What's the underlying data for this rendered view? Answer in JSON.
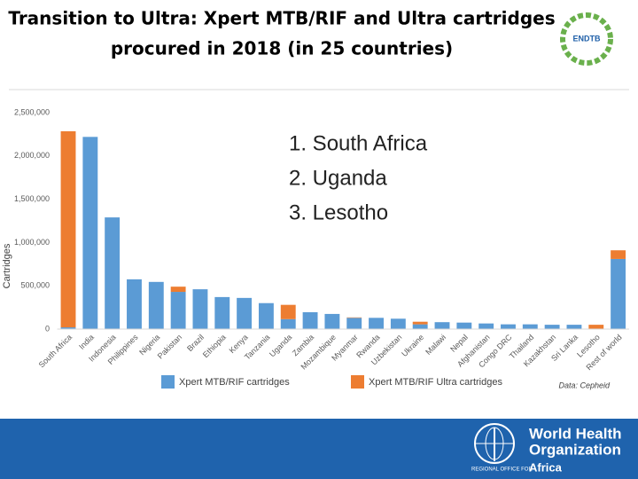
{
  "header": {
    "title_lines": [
      "Transition to Ultra: Xpert MTB/RIF and Ultra cartridges",
      "procured in 2018 (in 25 countries)"
    ],
    "logo_text": "ENDTB"
  },
  "chart_data": {
    "type": "stacked_bar",
    "y_label": "Cartridges",
    "categories": [
      "South Africa",
      "India",
      "Indonesia",
      "Philippines",
      "Nigeria",
      "Pakistan",
      "Brazil",
      "Ethiopia",
      "Kenya",
      "Tanzania",
      "Uganda",
      "Zambia",
      "Mozambique",
      "Myanmar",
      "Rwanda",
      "Uzbekistan",
      "Ukraine",
      "Malawi",
      "Nepal",
      "Afghanistan",
      "Congo DRC",
      "Thailand",
      "Kazakhstan",
      "Sri Lanka",
      "Lesotho",
      "Rest of world"
    ],
    "series": [
      {
        "name": "Xpert MTB/RIF cartridges",
        "color": "#5b9bd5",
        "values": [
          20000,
          2220000,
          1290000,
          575000,
          545000,
          430000,
          460000,
          370000,
          360000,
          300000,
          115000,
          195000,
          175000,
          130000,
          130000,
          120000,
          55000,
          80000,
          75000,
          65000,
          55000,
          55000,
          50000,
          50000,
          0,
          810000
        ]
      },
      {
        "name": "Xpert MTB/RIF Ultra cartridges",
        "color": "#ed7d31",
        "values": [
          2265000,
          0,
          0,
          0,
          0,
          60000,
          0,
          0,
          0,
          0,
          165000,
          0,
          0,
          5000,
          0,
          0,
          30000,
          0,
          0,
          0,
          0,
          0,
          0,
          0,
          50000,
          100000
        ]
      }
    ],
    "ylim": [
      0,
      2500000
    ],
    "yticks": [
      0,
      {
        "value": 500000,
        "label": "500,000"
      },
      {
        "value": 1000000,
        "label": "1,000,000"
      },
      {
        "value": 1500000,
        "label": "1,500,000"
      },
      {
        "value": 2000000,
        "label": "2,000,000"
      },
      {
        "value": 2500000,
        "label": "2,500,000"
      }
    ],
    "grid": false,
    "legend": "bottom",
    "annotations": [
      "1. South Africa",
      "2. Uganda",
      "3. Lesotho"
    ],
    "source": "Data: Cepheid"
  },
  "footer": {
    "org_lines": [
      "World Health",
      "Organization"
    ],
    "region_prefix": "REGIONAL OFFICE FOR",
    "region": "Africa"
  }
}
